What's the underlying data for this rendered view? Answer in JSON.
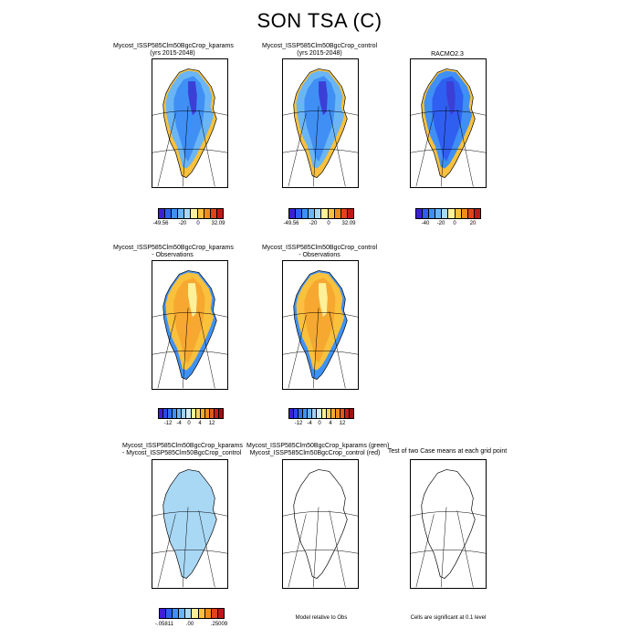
{
  "title": "SON TSA (C)",
  "panels": [
    {
      "line1": "Mycost_ISSP585Clm50BgcCrop_kparams",
      "line2": "(yrs 2015-2048)"
    },
    {
      "line1": "Mycost_ISSP585Clm50BgcCrop_control",
      "line2": "(yrs 2015-2048)"
    },
    {
      "line1": "RACMO2.3",
      "line2": ""
    },
    {
      "line1": "Mycost_ISSP585Clm50BgcCrop_kparams",
      "line2": "- Observations"
    },
    {
      "line1": "Mycost_ISSP585Clm50BgcCrop_control",
      "line2": "- Observations"
    },
    {
      "line1": "Mycost_ISSP585Clm50BgcCrop_kparams",
      "line2": "- Mycost_ISSP585Clm50BgcCrop_control"
    },
    {
      "line1": "Mycost_ISSP585Clm50BgcCrop_kparams (green)",
      "line2": "Mycost_ISSP585Clm50BgcCrop_control (red)"
    },
    {
      "line1": "Test of two Case means at each grid point",
      "line2": ""
    }
  ],
  "colorbars": {
    "abs": {
      "ticks": [
        "-49.56",
        "-20",
        "0",
        "32.09"
      ],
      "colors": [
        "#3b1fd6",
        "#2f5ff0",
        "#3f8ff5",
        "#6ab5f5",
        "#a9d8f5",
        "#fff09a",
        "#f9c13c",
        "#f08b1c",
        "#e0431b",
        "#c01717"
      ]
    },
    "racmo": {
      "ticks": [
        "-40",
        "-20",
        "0",
        "20"
      ],
      "colors": [
        "#3b1fd6",
        "#2f5ff0",
        "#3f8ff5",
        "#6ab5f5",
        "#a9d8f5",
        "#fff09a",
        "#f9c13c",
        "#f08b1c",
        "#e0431b",
        "#c01717"
      ]
    },
    "bias": {
      "ticks": [
        "-12",
        "-4",
        "0",
        "4",
        "12"
      ],
      "colors": [
        "#3b1fd6",
        "#2a47e8",
        "#2f6ff0",
        "#3f92f5",
        "#68b2f5",
        "#a0d2f5",
        "#d0ecf8",
        "#fff09a",
        "#f9d25a",
        "#f6a830",
        "#f08b1c",
        "#e05a1a",
        "#c81d17",
        "#a01010"
      ]
    },
    "diff": {
      "ticks": [
        "-.05811",
        ".00",
        ".25009"
      ],
      "colors": [
        "#3b1fd6",
        "#2f5ff0",
        "#3f8ff5",
        "#6ab5f5",
        "#a9d8f5",
        "#fff09a",
        "#f9c13c",
        "#f08b1c",
        "#e0431b",
        "#c01717"
      ]
    }
  },
  "notes": {
    "model_rel": "Model relative to Obs",
    "significance": "Cells are significant at 0.1 level"
  }
}
